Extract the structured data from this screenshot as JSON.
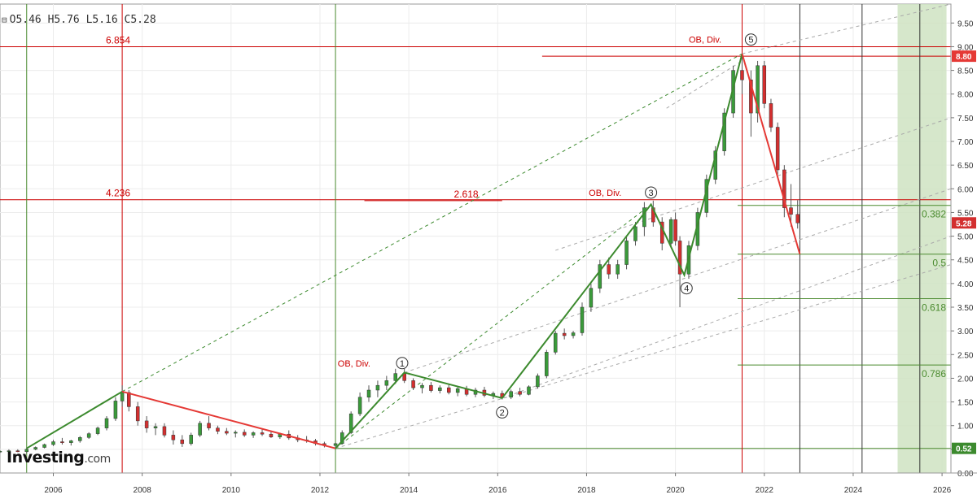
{
  "header": {
    "open": "O5.46",
    "high": "H5.76",
    "low": "L5.16",
    "close": "C5.28",
    "collapse_icon": "minus-square-icon"
  },
  "logo": {
    "main": "Investing",
    "suffix": ".com"
  },
  "colors": {
    "up": "#3a9a3a",
    "down": "#c62828",
    "wave_up": "#3c8a2e",
    "wave_down": "#e53935",
    "red_line": "#cc0000",
    "green_line": "#4a8a2e",
    "band": "#cfe3c2",
    "dash": "#b0b0b0"
  },
  "chart_data": {
    "type": "candlestick",
    "title": "",
    "x_ticks": [
      "2006",
      "2008",
      "2010",
      "2012",
      "2014",
      "2016",
      "2018",
      "2020",
      "2022",
      "2024",
      "2026"
    ],
    "y_ticks": [
      "0.00",
      "0.50",
      "1.00",
      "1.50",
      "2.00",
      "2.50",
      "3.00",
      "3.50",
      "4.00",
      "4.50",
      "5.00",
      "5.50",
      "6.00",
      "6.50",
      "7.00",
      "7.50",
      "8.00",
      "8.50",
      "9.00",
      "9.50"
    ],
    "xlim": [
      2004.8,
      2026.2
    ],
    "ylim": [
      0.0,
      9.9
    ],
    "last_price": {
      "value": 5.28,
      "label": "5.28"
    },
    "price_flags": [
      {
        "value": 8.8,
        "label": "8.80",
        "color": "#e53935"
      },
      {
        "value": 0.52,
        "label": "0.52",
        "color": "#3c8a2e"
      }
    ],
    "wave_path_up": [
      [
        2005.4,
        0.52
      ],
      [
        2007.55,
        1.72
      ]
    ],
    "wave_path_down_1": [
      [
        2007.55,
        1.72
      ],
      [
        2012.35,
        0.52
      ]
    ],
    "wave_path_impulse": [
      [
        2012.35,
        0.52
      ],
      [
        2013.9,
        2.12
      ],
      [
        2016.1,
        1.58
      ],
      [
        2019.45,
        5.67
      ],
      [
        2020.2,
        4.18
      ],
      [
        2021.5,
        8.85
      ]
    ],
    "wave_path_decline": [
      [
        2021.5,
        8.85
      ],
      [
        2022.8,
        4.62
      ]
    ],
    "wave_labels": [
      {
        "label": "1",
        "x": 2013.85,
        "y": 2.32
      },
      {
        "label": "2",
        "x": 2016.1,
        "y": 1.28
      },
      {
        "label": "3",
        "x": 2019.45,
        "y": 5.92
      },
      {
        "label": "4",
        "x": 2020.25,
        "y": 3.9
      },
      {
        "label": "5",
        "x": 2021.7,
        "y": 9.15
      }
    ],
    "annotations": [
      {
        "text": "OB, Div.",
        "x": 2013.3,
        "y": 2.32
      },
      {
        "text": "OB, Div.",
        "x": 2018.95,
        "y": 5.92
      },
      {
        "text": "OB, Div.",
        "x": 2021.2,
        "y": 9.15
      }
    ],
    "horizontal_levels": [
      {
        "value": 9.0,
        "label": "6.854",
        "x_start": 2004.8,
        "x_end": 2026.2,
        "color": "#cc0000"
      },
      {
        "value": 8.8,
        "label": "",
        "x_start": 2017.0,
        "x_end": 2026.2,
        "color": "#cc0000"
      },
      {
        "value": 5.77,
        "label": "4.236",
        "x_start": 2004.8,
        "x_end": 2026.2,
        "color": "#cc0000"
      },
      {
        "value": 5.75,
        "label": "2.618",
        "x_start": 2013.0,
        "x_end": 2016.1,
        "color": "#cc0000"
      },
      {
        "value": 0.52,
        "label": "",
        "x_start": 2012.35,
        "x_end": 2026.2,
        "color": "#4a8a2e"
      }
    ],
    "fib_retracement": [
      {
        "value": 5.65,
        "label": "0.382"
      },
      {
        "value": 4.62,
        "label": "0.5"
      },
      {
        "value": 3.68,
        "label": "0.618"
      },
      {
        "value": 2.28,
        "label": "0.786"
      }
    ],
    "fib_x_start": 2021.4,
    "vertical_lines": [
      {
        "x": 2005.4,
        "color": "#4a8a2e"
      },
      {
        "x": 2007.55,
        "color": "#cc0000"
      },
      {
        "x": 2012.35,
        "color": "#4a8a2e"
      },
      {
        "x": 2021.5,
        "color": "#cc0000"
      },
      {
        "x": 2022.8,
        "color": "#333333"
      },
      {
        "x": 2024.2,
        "color": "#333333"
      },
      {
        "x": 2025.5,
        "color": "#333333"
      }
    ],
    "highlight_band": {
      "x_start": 2025.0,
      "x_end": 2026.1
    },
    "dashed_trendlines": [
      {
        "color": "#3c8a2e",
        "from": [
          2007.55,
          1.72
        ],
        "to": [
          2021.5,
          8.85
        ]
      },
      {
        "color": "#3c8a2e",
        "from": [
          2012.35,
          0.52
        ],
        "to": [
          2019.45,
          5.67
        ]
      },
      {
        "color": "#aaaaaa",
        "from": [
          2021.5,
          8.85
        ],
        "to": [
          2026.2,
          9.9
        ]
      },
      {
        "color": "#aaaaaa",
        "from": [
          2013.9,
          2.12
        ],
        "to": [
          2026.2,
          6.0
        ]
      },
      {
        "color": "#aaaaaa",
        "from": [
          2016.1,
          1.58
        ],
        "to": [
          2026.2,
          5.0
        ]
      },
      {
        "color": "#aaaaaa",
        "from": [
          2012.35,
          0.52
        ],
        "to": [
          2026.2,
          4.4
        ]
      },
      {
        "color": "#aaaaaa",
        "from": [
          2017.3,
          4.7
        ],
        "to": [
          2026.2,
          7.5
        ]
      },
      {
        "color": "#aaaaaa",
        "from": [
          2019.8,
          7.7
        ],
        "to": [
          2021.5,
          8.7
        ]
      }
    ],
    "candles": [
      [
        2004.8,
        0.45,
        0.48,
        0.42,
        0.46
      ],
      [
        2005.0,
        0.46,
        0.5,
        0.43,
        0.47
      ],
      [
        2005.2,
        0.47,
        0.5,
        0.44,
        0.45
      ],
      [
        2005.4,
        0.45,
        0.52,
        0.42,
        0.5
      ],
      [
        2005.6,
        0.5,
        0.56,
        0.48,
        0.54
      ],
      [
        2005.8,
        0.54,
        0.62,
        0.52,
        0.6
      ],
      [
        2006.0,
        0.6,
        0.7,
        0.57,
        0.66
      ],
      [
        2006.2,
        0.66,
        0.74,
        0.6,
        0.64
      ],
      [
        2006.4,
        0.64,
        0.7,
        0.58,
        0.68
      ],
      [
        2006.6,
        0.68,
        0.78,
        0.64,
        0.75
      ],
      [
        2006.8,
        0.75,
        0.86,
        0.72,
        0.83
      ],
      [
        2007.0,
        0.83,
        0.98,
        0.8,
        0.95
      ],
      [
        2007.2,
        0.95,
        1.2,
        0.9,
        1.15
      ],
      [
        2007.4,
        1.15,
        1.6,
        1.1,
        1.52
      ],
      [
        2007.55,
        1.52,
        1.85,
        1.4,
        1.7
      ],
      [
        2007.7,
        1.7,
        1.75,
        1.3,
        1.4
      ],
      [
        2007.9,
        1.4,
        1.5,
        1.0,
        1.1
      ],
      [
        2008.1,
        1.1,
        1.2,
        0.85,
        0.95
      ],
      [
        2008.3,
        0.95,
        1.05,
        0.8,
        0.98
      ],
      [
        2008.5,
        0.98,
        1.05,
        0.75,
        0.8
      ],
      [
        2008.7,
        0.8,
        0.9,
        0.6,
        0.7
      ],
      [
        2008.9,
        0.7,
        0.8,
        0.55,
        0.62
      ],
      [
        2009.1,
        0.62,
        0.85,
        0.58,
        0.8
      ],
      [
        2009.3,
        0.8,
        1.1,
        0.76,
        1.05
      ],
      [
        2009.5,
        1.05,
        1.2,
        0.9,
        0.95
      ],
      [
        2009.7,
        0.95,
        1.0,
        0.82,
        0.88
      ],
      [
        2009.9,
        0.88,
        0.95,
        0.8,
        0.84
      ],
      [
        2010.1,
        0.84,
        0.9,
        0.75,
        0.86
      ],
      [
        2010.3,
        0.86,
        0.92,
        0.76,
        0.8
      ],
      [
        2010.5,
        0.8,
        0.88,
        0.74,
        0.85
      ],
      [
        2010.7,
        0.85,
        0.92,
        0.78,
        0.82
      ],
      [
        2010.9,
        0.82,
        0.88,
        0.74,
        0.76
      ],
      [
        2011.1,
        0.76,
        0.85,
        0.72,
        0.82
      ],
      [
        2011.3,
        0.82,
        0.9,
        0.7,
        0.74
      ],
      [
        2011.5,
        0.74,
        0.8,
        0.65,
        0.7
      ],
      [
        2011.7,
        0.7,
        0.78,
        0.64,
        0.68
      ],
      [
        2011.9,
        0.68,
        0.72,
        0.58,
        0.62
      ],
      [
        2012.1,
        0.62,
        0.66,
        0.54,
        0.58
      ],
      [
        2012.35,
        0.58,
        0.64,
        0.5,
        0.62
      ],
      [
        2012.5,
        0.62,
        0.9,
        0.6,
        0.85
      ],
      [
        2012.7,
        0.85,
        1.3,
        0.82,
        1.25
      ],
      [
        2012.9,
        1.25,
        1.7,
        1.2,
        1.6
      ],
      [
        2013.1,
        1.6,
        1.85,
        1.5,
        1.75
      ],
      [
        2013.3,
        1.75,
        1.95,
        1.6,
        1.85
      ],
      [
        2013.5,
        1.85,
        2.05,
        1.75,
        1.95
      ],
      [
        2013.7,
        1.95,
        2.2,
        1.88,
        2.1
      ],
      [
        2013.9,
        2.1,
        2.2,
        1.9,
        1.95
      ],
      [
        2014.1,
        1.95,
        2.0,
        1.75,
        1.8
      ],
      [
        2014.3,
        1.8,
        1.9,
        1.68,
        1.85
      ],
      [
        2014.5,
        1.85,
        1.92,
        1.7,
        1.74
      ],
      [
        2014.7,
        1.74,
        1.85,
        1.68,
        1.8
      ],
      [
        2014.9,
        1.8,
        1.86,
        1.66,
        1.7
      ],
      [
        2015.1,
        1.7,
        1.82,
        1.62,
        1.78
      ],
      [
        2015.3,
        1.78,
        1.84,
        1.62,
        1.66
      ],
      [
        2015.5,
        1.66,
        1.8,
        1.6,
        1.75
      ],
      [
        2015.7,
        1.75,
        1.82,
        1.6,
        1.64
      ],
      [
        2015.9,
        1.64,
        1.72,
        1.56,
        1.68
      ],
      [
        2016.1,
        1.68,
        1.74,
        1.55,
        1.6
      ],
      [
        2016.3,
        1.6,
        1.76,
        1.56,
        1.72
      ],
      [
        2016.5,
        1.72,
        1.8,
        1.62,
        1.66
      ],
      [
        2016.7,
        1.66,
        1.85,
        1.64,
        1.82
      ],
      [
        2016.9,
        1.82,
        2.1,
        1.78,
        2.05
      ],
      [
        2017.1,
        2.05,
        2.6,
        2.0,
        2.55
      ],
      [
        2017.3,
        2.55,
        3.0,
        2.5,
        2.95
      ],
      [
        2017.5,
        2.95,
        3.05,
        2.82,
        2.9
      ],
      [
        2017.7,
        2.9,
        3.0,
        2.84,
        2.96
      ],
      [
        2017.9,
        2.96,
        3.6,
        2.9,
        3.5
      ],
      [
        2018.1,
        3.5,
        4.0,
        3.4,
        3.9
      ],
      [
        2018.3,
        3.9,
        4.5,
        3.8,
        4.4
      ],
      [
        2018.5,
        4.4,
        4.55,
        4.1,
        4.2
      ],
      [
        2018.7,
        4.2,
        4.5,
        4.1,
        4.4
      ],
      [
        2018.9,
        4.4,
        5.0,
        4.3,
        4.9
      ],
      [
        2019.1,
        4.9,
        5.3,
        4.8,
        5.2
      ],
      [
        2019.3,
        5.2,
        5.72,
        5.0,
        5.6
      ],
      [
        2019.5,
        5.6,
        5.75,
        5.2,
        5.3
      ],
      [
        2019.7,
        5.3,
        5.4,
        4.7,
        4.85
      ],
      [
        2019.9,
        4.85,
        5.4,
        4.75,
        5.35
      ],
      [
        2020.0,
        5.35,
        5.5,
        4.8,
        4.9
      ],
      [
        2020.1,
        4.9,
        5.0,
        3.5,
        4.2
      ],
      [
        2020.3,
        4.2,
        4.9,
        4.1,
        4.8
      ],
      [
        2020.5,
        4.8,
        5.6,
        4.7,
        5.5
      ],
      [
        2020.7,
        5.5,
        6.3,
        5.4,
        6.2
      ],
      [
        2020.9,
        6.2,
        6.9,
        6.1,
        6.8
      ],
      [
        2021.1,
        6.8,
        7.7,
        6.7,
        7.6
      ],
      [
        2021.3,
        7.6,
        8.6,
        7.5,
        8.5
      ],
      [
        2021.5,
        8.5,
        8.85,
        8.0,
        8.3
      ],
      [
        2021.7,
        8.3,
        8.5,
        7.1,
        7.6
      ],
      [
        2021.85,
        7.6,
        8.7,
        7.4,
        8.6
      ],
      [
        2022.0,
        8.6,
        8.7,
        7.7,
        7.8
      ],
      [
        2022.15,
        7.8,
        7.9,
        7.2,
        7.3
      ],
      [
        2022.3,
        7.3,
        7.4,
        6.3,
        6.4
      ],
      [
        2022.45,
        6.4,
        6.5,
        5.4,
        5.6
      ],
      [
        2022.6,
        5.6,
        6.1,
        5.2,
        5.46
      ],
      [
        2022.75,
        5.46,
        5.76,
        5.16,
        5.28
      ]
    ]
  }
}
